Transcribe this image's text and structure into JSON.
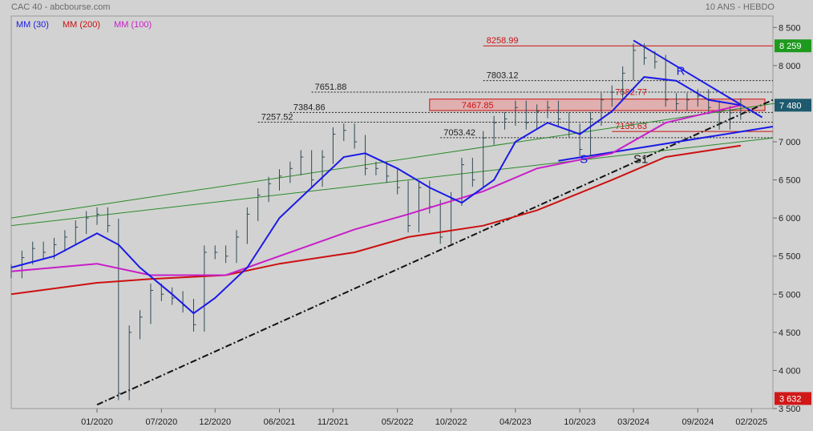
{
  "header": {
    "title": "CAC 40 - abcbourse.com",
    "period": "10 ANS - HEBDO"
  },
  "legend": [
    {
      "label": "MM (30)",
      "color": "#1a1ae6"
    },
    {
      "label": "MM (200)",
      "color": "#cc1010"
    },
    {
      "label": "MM (100)",
      "color": "#c81ec8"
    }
  ],
  "colors": {
    "background": "#d2d2d2",
    "price_bars": "#2e4a55",
    "mm30": "#1a1ae6",
    "mm100": "#c81ec8",
    "mm200": "#cc1010",
    "channel": "#2a8a2a",
    "resistance_zone": "#e6a0a0",
    "last_badge": "#1e5a6e",
    "high_badge": "#1e9a1e",
    "low_badge": "#d01818"
  },
  "chart_data": {
    "type": "line",
    "title": "CAC 40",
    "ylim": [
      3500,
      8650
    ],
    "y_ticks": [
      3500,
      4000,
      4500,
      5000,
      5500,
      6000,
      6500,
      7000,
      7500,
      8000,
      8500
    ],
    "y_tick_labels": [
      "3 500",
      "4 000",
      "4 500",
      "5 000",
      "5 500",
      "6 000",
      "6 500",
      "7 000",
      "7 500",
      "8 000",
      "8 500"
    ],
    "x_ticks": [
      "01/2020",
      "07/2020",
      "12/2020",
      "06/2021",
      "11/2021",
      "05/2022",
      "10/2022",
      "04/2023",
      "10/2023",
      "03/2024",
      "09/2024",
      "02/2025"
    ],
    "x_tick_dates": [
      "2020-01",
      "2020-07",
      "2020-12",
      "2021-06",
      "2021-11",
      "2022-05",
      "2022-10",
      "2023-04",
      "2023-10",
      "2024-03",
      "2024-09",
      "2025-02"
    ],
    "xlim": [
      "2019-05",
      "2025-04"
    ],
    "price_series": [
      {
        "date": "2019-05",
        "close": 5300
      },
      {
        "date": "2019-06",
        "close": 5480
      },
      {
        "date": "2019-07",
        "close": 5600
      },
      {
        "date": "2019-08",
        "close": 5550
      },
      {
        "date": "2019-09",
        "close": 5650
      },
      {
        "date": "2019-10",
        "close": 5750
      },
      {
        "date": "2019-11",
        "close": 5880
      },
      {
        "date": "2019-12",
        "close": 6000
      },
      {
        "date": "2020-01",
        "close": 6050
      },
      {
        "date": "2020-02",
        "close": 5900
      },
      {
        "date": "2020-03",
        "close": 3700
      },
      {
        "date": "2020-04",
        "close": 4500
      },
      {
        "date": "2020-05",
        "close": 4700
      },
      {
        "date": "2020-06",
        "close": 5050
      },
      {
        "date": "2020-07",
        "close": 5000
      },
      {
        "date": "2020-08",
        "close": 4950
      },
      {
        "date": "2020-09",
        "close": 4850
      },
      {
        "date": "2020-10",
        "close": 4600
      },
      {
        "date": "2020-11",
        "close": 5550
      },
      {
        "date": "2020-12",
        "close": 5550
      },
      {
        "date": "2021-01",
        "close": 5500
      },
      {
        "date": "2021-02",
        "close": 5750
      },
      {
        "date": "2021-03",
        "close": 6050
      },
      {
        "date": "2021-04",
        "close": 6300
      },
      {
        "date": "2021-05",
        "close": 6450
      },
      {
        "date": "2021-06",
        "close": 6550
      },
      {
        "date": "2021-07",
        "close": 6650
      },
      {
        "date": "2021-08",
        "close": 6800
      },
      {
        "date": "2021-09",
        "close": 6500
      },
      {
        "date": "2021-10",
        "close": 6800
      },
      {
        "date": "2021-11",
        "close": 7100
      },
      {
        "date": "2021-12",
        "close": 7150
      },
      {
        "date": "2022-01",
        "close": 7000
      },
      {
        "date": "2022-02",
        "close": 6650
      },
      {
        "date": "2022-03",
        "close": 6650
      },
      {
        "date": "2022-04",
        "close": 6550
      },
      {
        "date": "2022-05",
        "close": 6400
      },
      {
        "date": "2022-06",
        "close": 5900
      },
      {
        "date": "2022-07",
        "close": 6400
      },
      {
        "date": "2022-08",
        "close": 6150
      },
      {
        "date": "2022-09",
        "close": 5750
      },
      {
        "date": "2022-10",
        "close": 6250
      },
      {
        "date": "2022-11",
        "close": 6700
      },
      {
        "date": "2022-12",
        "close": 6500
      },
      {
        "date": "2023-01",
        "close": 7050
      },
      {
        "date": "2023-02",
        "close": 7250
      },
      {
        "date": "2023-03",
        "close": 7300
      },
      {
        "date": "2023-04",
        "close": 7450
      },
      {
        "date": "2023-05",
        "close": 7250
      },
      {
        "date": "2023-06",
        "close": 7400
      },
      {
        "date": "2023-07",
        "close": 7450
      },
      {
        "date": "2023-08",
        "close": 7300
      },
      {
        "date": "2023-09",
        "close": 7150
      },
      {
        "date": "2023-10",
        "close": 6900
      },
      {
        "date": "2023-11",
        "close": 7300
      },
      {
        "date": "2023-12",
        "close": 7550
      },
      {
        "date": "2024-01",
        "close": 7650
      },
      {
        "date": "2024-02",
        "close": 7900
      },
      {
        "date": "2024-03",
        "close": 8200
      },
      {
        "date": "2024-04",
        "close": 8100
      },
      {
        "date": "2024-05",
        "close": 8050
      },
      {
        "date": "2024-06",
        "close": 7550
      },
      {
        "date": "2024-07",
        "close": 7500
      },
      {
        "date": "2024-08",
        "close": 7550
      },
      {
        "date": "2024-09",
        "close": 7600
      },
      {
        "date": "2024-10",
        "close": 7450
      },
      {
        "date": "2024-11",
        "close": 7250
      },
      {
        "date": "2024-12",
        "close": 7380
      },
      {
        "date": "2025-01",
        "close": 7480
      }
    ],
    "mm30": [
      {
        "date": "2019-05",
        "value": 5350
      },
      {
        "date": "2019-09",
        "value": 5500
      },
      {
        "date": "2020-01",
        "value": 5800
      },
      {
        "date": "2020-03",
        "value": 5650
      },
      {
        "date": "2020-05",
        "value": 5350
      },
      {
        "date": "2020-08",
        "value": 5000
      },
      {
        "date": "2020-10",
        "value": 4750
      },
      {
        "date": "2020-12",
        "value": 4950
      },
      {
        "date": "2021-03",
        "value": 5350
      },
      {
        "date": "2021-06",
        "value": 6000
      },
      {
        "date": "2021-09",
        "value": 6400
      },
      {
        "date": "2021-12",
        "value": 6800
      },
      {
        "date": "2022-02",
        "value": 6850
      },
      {
        "date": "2022-05",
        "value": 6650
      },
      {
        "date": "2022-08",
        "value": 6400
      },
      {
        "date": "2022-11",
        "value": 6200
      },
      {
        "date": "2023-02",
        "value": 6500
      },
      {
        "date": "2023-04",
        "value": 7000
      },
      {
        "date": "2023-07",
        "value": 7250
      },
      {
        "date": "2023-10",
        "value": 7100
      },
      {
        "date": "2024-01",
        "value": 7400
      },
      {
        "date": "2024-04",
        "value": 7850
      },
      {
        "date": "2024-07",
        "value": 7800
      },
      {
        "date": "2024-10",
        "value": 7550
      },
      {
        "date": "2025-01",
        "value": 7480
      }
    ],
    "mm100": [
      {
        "date": "2019-05",
        "value": 5300
      },
      {
        "date": "2020-01",
        "value": 5400
      },
      {
        "date": "2020-06",
        "value": 5250
      },
      {
        "date": "2021-01",
        "value": 5250
      },
      {
        "date": "2021-06",
        "value": 5500
      },
      {
        "date": "2022-01",
        "value": 5850
      },
      {
        "date": "2022-06",
        "value": 6050
      },
      {
        "date": "2023-01",
        "value": 6350
      },
      {
        "date": "2023-06",
        "value": 6650
      },
      {
        "date": "2024-01",
        "value": 6850
      },
      {
        "date": "2024-06",
        "value": 7250
      },
      {
        "date": "2025-01",
        "value": 7480
      }
    ],
    "mm200": [
      {
        "date": "2019-05",
        "value": 5000
      },
      {
        "date": "2020-01",
        "value": 5150
      },
      {
        "date": "2020-06",
        "value": 5200
      },
      {
        "date": "2021-01",
        "value": 5250
      },
      {
        "date": "2021-06",
        "value": 5400
      },
      {
        "date": "2022-01",
        "value": 5550
      },
      {
        "date": "2022-06",
        "value": 5750
      },
      {
        "date": "2023-01",
        "value": 5900
      },
      {
        "date": "2023-06",
        "value": 6100
      },
      {
        "date": "2024-01",
        "value": 6500
      },
      {
        "date": "2024-06",
        "value": 6800
      },
      {
        "date": "2025-01",
        "value": 6950
      }
    ],
    "levels": [
      {
        "value": 8258.99,
        "label": "8258.99",
        "color": "#cc1010",
        "style": "solid",
        "from": "2023-01"
      },
      {
        "value": 7803.12,
        "label": "7803.12",
        "color": "#222222",
        "style": "dotted",
        "from": "2023-01"
      },
      {
        "value": 7651.88,
        "label": "7651.88",
        "color": "#222222",
        "style": "dotted",
        "from": "2021-09"
      },
      {
        "value": 7384.86,
        "label": "7384.86",
        "color": "#222222",
        "style": "dotted",
        "from": "2021-07"
      },
      {
        "value": 7257.52,
        "label": "7257.52",
        "color": "#222222",
        "style": "dotted",
        "from": "2021-04"
      },
      {
        "value": 7053.42,
        "label": "7053.42",
        "color": "#222222",
        "style": "dotted",
        "from": "2022-09"
      },
      {
        "value": 7582.77,
        "label": "7582.77",
        "color": "#cc1010",
        "style": "none",
        "from": "2024-01"
      },
      {
        "value": 7135.63,
        "label": "7135.63",
        "color": "#cc1010",
        "style": "solid",
        "from": "2024-01"
      }
    ],
    "zone": {
      "low": 7410,
      "high": 7560,
      "label": "7467.85",
      "from": "2022-08"
    },
    "trendlines": [
      {
        "name": "support-dash",
        "from": {
          "date": "2020-01",
          "value": 3550
        },
        "to": {
          "date": "2025-04",
          "value": 7550
        },
        "style": "dashdot",
        "color": "#111111"
      },
      {
        "name": "resistance-r",
        "from": {
          "date": "2024-03",
          "value": 8330
        },
        "to": {
          "date": "2025-03",
          "value": 7320
        },
        "style": "solid",
        "color": "#1a1ae6"
      },
      {
        "name": "support-s",
        "from": {
          "date": "2023-08",
          "value": 6750
        },
        "to": {
          "date": "2025-04",
          "value": 7200
        },
        "style": "solid",
        "color": "#1a1ae6"
      },
      {
        "name": "channel-upper",
        "from": {
          "date": "2019-05",
          "value": 6000
        },
        "to": {
          "date": "2025-04",
          "value": 7500
        },
        "style": "solid",
        "color": "#2a8a2a"
      },
      {
        "name": "channel-lower",
        "from": {
          "date": "2019-05",
          "value": 5900
        },
        "to": {
          "date": "2025-04",
          "value": 7050
        },
        "style": "solid",
        "color": "#2a8a2a"
      }
    ],
    "annotations": [
      {
        "text": "S",
        "date": "2023-10",
        "value": 6720,
        "color": "#1a1ae6"
      },
      {
        "text": "S1",
        "date": "2024-03",
        "value": 6720,
        "color": "#222222"
      },
      {
        "text": "R",
        "date": "2024-07",
        "value": 7880,
        "color": "#1a1ae6"
      }
    ],
    "badges": [
      {
        "value": 8259,
        "label": "8 259",
        "color": "#1e9a1e"
      },
      {
        "value": 7480,
        "label": "7 480",
        "color": "#1e5a6e"
      },
      {
        "value": 3632,
        "label": "3 632",
        "color": "#d01818"
      }
    ]
  }
}
